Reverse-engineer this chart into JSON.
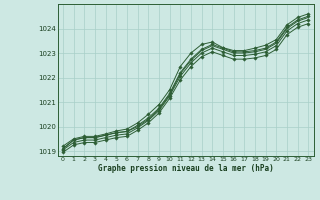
{
  "background_color": "#cde8e3",
  "grid_color": "#a8cfc8",
  "line_color": "#2d5e35",
  "marker_color": "#2d5e35",
  "text_color": "#1a4020",
  "xlabel": "Graphe pression niveau de la mer (hPa)",
  "xlim": [
    -0.5,
    23.5
  ],
  "ylim": [
    1018.8,
    1025.0
  ],
  "yticks": [
    1019,
    1020,
    1021,
    1022,
    1023,
    1024
  ],
  "xticks": [
    0,
    1,
    2,
    3,
    4,
    5,
    6,
    7,
    8,
    9,
    10,
    11,
    12,
    13,
    14,
    15,
    16,
    17,
    18,
    19,
    20,
    21,
    22,
    23
  ],
  "series": [
    {
      "x": [
        0,
        1,
        2,
        3,
        4,
        5,
        6,
        7,
        8,
        9,
        10,
        11,
        12,
        13,
        14,
        15,
        16,
        17,
        18,
        19,
        20,
        21,
        22,
        23
      ],
      "y": [
        1019.1,
        1019.45,
        1019.55,
        1019.55,
        1019.65,
        1019.75,
        1019.8,
        1020.05,
        1020.35,
        1020.75,
        1021.35,
        1022.2,
        1022.75,
        1023.15,
        1023.35,
        1023.2,
        1023.05,
        1023.05,
        1023.1,
        1023.2,
        1023.45,
        1024.05,
        1024.35,
        1024.5
      ],
      "has_markers": true
    },
    {
      "x": [
        0,
        1,
        2,
        3,
        4,
        5,
        6,
        7,
        8,
        9,
        10,
        11,
        12,
        13,
        14,
        15,
        16,
        17,
        18,
        19,
        20,
        21,
        22,
        23
      ],
      "y": [
        1019.05,
        1019.35,
        1019.45,
        1019.45,
        1019.55,
        1019.65,
        1019.7,
        1019.95,
        1020.25,
        1020.65,
        1021.25,
        1022.05,
        1022.6,
        1023.0,
        1023.2,
        1023.05,
        1022.9,
        1022.9,
        1022.95,
        1023.05,
        1023.3,
        1023.9,
        1024.2,
        1024.35
      ],
      "has_markers": true
    },
    {
      "x": [
        0,
        1,
        2,
        3,
        4,
        5,
        6,
        7,
        8,
        9,
        10,
        11,
        12,
        13,
        14,
        15,
        16,
        17,
        18,
        19,
        20,
        21,
        22,
        23
      ],
      "y": [
        1018.95,
        1019.25,
        1019.35,
        1019.35,
        1019.45,
        1019.55,
        1019.6,
        1019.85,
        1020.15,
        1020.55,
        1021.15,
        1021.9,
        1022.45,
        1022.85,
        1023.05,
        1022.9,
        1022.75,
        1022.75,
        1022.8,
        1022.9,
        1023.15,
        1023.75,
        1024.05,
        1024.2
      ],
      "has_markers": true
    },
    {
      "x": [
        0,
        1,
        2,
        3,
        4,
        5,
        6,
        7,
        8,
        9,
        10,
        11,
        12,
        13,
        14,
        15,
        16,
        17,
        18,
        19,
        20,
        21,
        22,
        23
      ],
      "y": [
        1019.1,
        1019.45,
        1019.55,
        1019.55,
        1019.65,
        1019.75,
        1019.8,
        1020.0,
        1020.3,
        1020.7,
        1021.3,
        1022.15,
        1022.7,
        1023.1,
        1023.3,
        1023.15,
        1023.0,
        1023.0,
        1023.05,
        1023.15,
        1023.4,
        1024.0,
        1024.3,
        1024.45
      ],
      "has_markers": false
    },
    {
      "x": [
        0,
        1,
        2,
        3,
        4,
        5,
        6,
        7,
        8,
        9,
        10,
        11,
        12,
        13,
        14,
        15,
        16,
        17,
        18,
        19,
        20,
        21,
        22,
        23
      ],
      "y": [
        1019.2,
        1019.5,
        1019.6,
        1019.6,
        1019.7,
        1019.82,
        1019.9,
        1020.15,
        1020.5,
        1020.9,
        1021.5,
        1022.45,
        1023.0,
        1023.35,
        1023.45,
        1023.22,
        1023.1,
        1023.1,
        1023.2,
        1023.32,
        1023.55,
        1024.15,
        1024.45,
        1024.6
      ],
      "has_markers": true
    }
  ]
}
